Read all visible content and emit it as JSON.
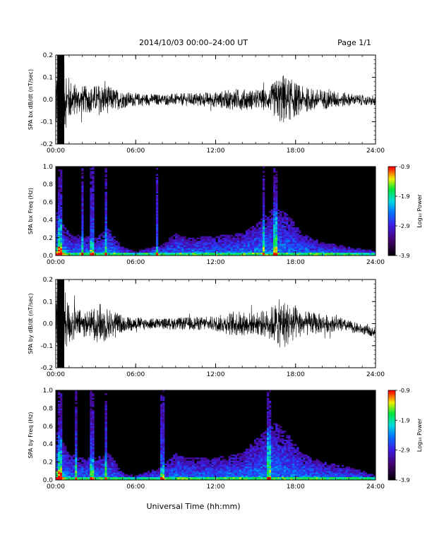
{
  "header": {
    "title": "2014/10/03  00:00–24:00 UT",
    "page": "Page 1/1"
  },
  "footer": {
    "xlabel": "Universal Time (hh:mm)"
  },
  "chart_data": [
    {
      "type": "line",
      "ylabel": "SPA bx dB/dt (nT/sec)",
      "xlim": [
        0,
        24
      ],
      "ylim": [
        -0.2,
        0.2
      ],
      "xticks": [
        "00:00",
        "06:00",
        "12:00",
        "18:00",
        "24:00"
      ],
      "yticks": [
        "-0.2",
        "-0.1",
        "0.0",
        "0.1",
        "0.2"
      ],
      "envelope": {
        "x_hours": [
          0,
          0.5,
          0.8,
          1.5,
          2.5,
          3.5,
          4.0,
          5.0,
          6.0,
          8.0,
          10.0,
          12.0,
          13.5,
          15.0,
          16.0,
          16.5,
          17.0,
          17.5,
          18.0,
          18.5,
          19.5,
          21.0,
          22.5,
          24.0
        ],
        "amplitude": [
          0.2,
          0.2,
          0.12,
          0.07,
          0.06,
          0.075,
          0.06,
          0.04,
          0.03,
          0.025,
          0.03,
          0.035,
          0.05,
          0.045,
          0.05,
          0.09,
          0.12,
          0.1,
          0.08,
          0.06,
          0.05,
          0.04,
          0.025,
          0.02
        ],
        "offset": [
          0,
          0,
          0,
          0,
          0,
          0,
          0,
          0,
          0,
          0,
          0,
          0,
          0,
          0,
          0,
          0,
          0,
          0,
          0,
          0,
          0,
          0,
          0,
          -0.01
        ]
      }
    },
    {
      "type": "heatmap",
      "ylabel": "SPA bx Freq (Hz)",
      "colorbar_label": "Log₁₀ Power",
      "colorbar_ticks": [
        "-0.9",
        "-1.9",
        "-2.9",
        "-3.9"
      ],
      "xlim": [
        0,
        24
      ],
      "ylim": [
        0,
        1
      ],
      "xticks": [
        "00:00",
        "06:00",
        "12:00",
        "18:00",
        "24:00"
      ],
      "yticks": [
        "0.0",
        "0.2",
        "0.4",
        "0.6",
        "0.8",
        "1.0"
      ],
      "activity": {
        "x_hours": [
          0,
          0.5,
          1.0,
          2.0,
          3.0,
          4.0,
          5.0,
          6.0,
          8.0,
          9.0,
          10.0,
          12.0,
          14.0,
          15.0,
          16.5,
          17.5,
          18.5,
          20.0,
          22.0,
          24.0
        ],
        "band_top_hz": [
          0.5,
          0.4,
          0.25,
          0.22,
          0.2,
          0.3,
          0.1,
          0.05,
          0.12,
          0.25,
          0.2,
          0.22,
          0.25,
          0.35,
          0.55,
          0.45,
          0.25,
          0.15,
          0.1,
          0.05
        ]
      },
      "bright_streaks_hours": [
        0.3,
        2.0,
        2.7,
        3.8,
        7.6,
        15.6,
        16.5
      ]
    },
    {
      "type": "line",
      "ylabel": "SPA by dB/dt (nT/sec)",
      "xlim": [
        0,
        24
      ],
      "ylim": [
        -0.2,
        0.2
      ],
      "xticks": [
        "00:00",
        "06:00",
        "12:00",
        "18:00",
        "24:00"
      ],
      "yticks": [
        "-0.2",
        "-0.1",
        "0.0",
        "0.1",
        "0.2"
      ],
      "envelope": {
        "x_hours": [
          0,
          0.5,
          0.8,
          1.5,
          2.5,
          3.5,
          4.0,
          5.0,
          6.0,
          8.0,
          10.0,
          12.0,
          13.5,
          15.0,
          16.0,
          16.5,
          17.0,
          17.5,
          18.0,
          18.5,
          19.5,
          21.0,
          22.5,
          24.0
        ],
        "amplitude": [
          0.2,
          0.2,
          0.12,
          0.07,
          0.06,
          0.1,
          0.07,
          0.04,
          0.03,
          0.025,
          0.03,
          0.035,
          0.06,
          0.05,
          0.07,
          0.1,
          0.12,
          0.1,
          0.08,
          0.06,
          0.05,
          0.035,
          0.025,
          0.02
        ],
        "offset": [
          0,
          0,
          0,
          0,
          0,
          0,
          0,
          0,
          0,
          0,
          0,
          0,
          0,
          0,
          0,
          0,
          0,
          0,
          0,
          0,
          0,
          0,
          -0.02,
          -0.04
        ]
      }
    },
    {
      "type": "heatmap",
      "ylabel": "SPA by Freq (Hz)",
      "colorbar_label": "Log₁₀ Power",
      "colorbar_ticks": [
        "-0.9",
        "-1.9",
        "-2.9",
        "-3.9"
      ],
      "xlim": [
        0,
        24
      ],
      "ylim": [
        0,
        1
      ],
      "xticks": [
        "00:00",
        "06:00",
        "12:00",
        "18:00",
        "24:00"
      ],
      "yticks": [
        "0.0",
        "0.2",
        "0.4",
        "0.6",
        "0.8",
        "1.0"
      ],
      "activity": {
        "x_hours": [
          0,
          0.5,
          1.0,
          2.0,
          3.0,
          4.0,
          5.0,
          6.0,
          8.0,
          9.0,
          10.0,
          12.0,
          14.0,
          15.0,
          16.5,
          17.5,
          18.5,
          20.0,
          22.0,
          24.0
        ],
        "band_top_hz": [
          0.55,
          0.45,
          0.3,
          0.25,
          0.25,
          0.3,
          0.08,
          0.05,
          0.15,
          0.3,
          0.25,
          0.25,
          0.3,
          0.45,
          0.65,
          0.5,
          0.3,
          0.2,
          0.15,
          0.05
        ]
      },
      "bright_streaks_hours": [
        0.3,
        1.5,
        2.7,
        3.8,
        8.0,
        16.0
      ]
    }
  ]
}
